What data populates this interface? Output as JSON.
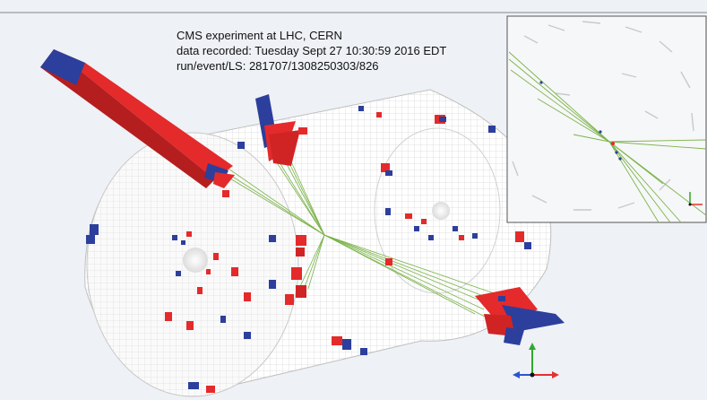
{
  "caption": {
    "line1": "CMS experiment at LHC, CERN",
    "line2": "data recorded: Tuesday Sept 27 10:30:59 2016 EDT",
    "line3": "run/event/LS: 281707/1308250303/826"
  },
  "colors": {
    "background": "#eef1f5",
    "ecal_deposit": "#e42a2a",
    "hcal_deposit": "#2c3f9c",
    "track": "#7bb34a",
    "detector_mesh": "#c8c8c8",
    "axis_x": "#e53030",
    "axis_y": "#2fa82f",
    "axis_z": "#2a55d0"
  }
}
